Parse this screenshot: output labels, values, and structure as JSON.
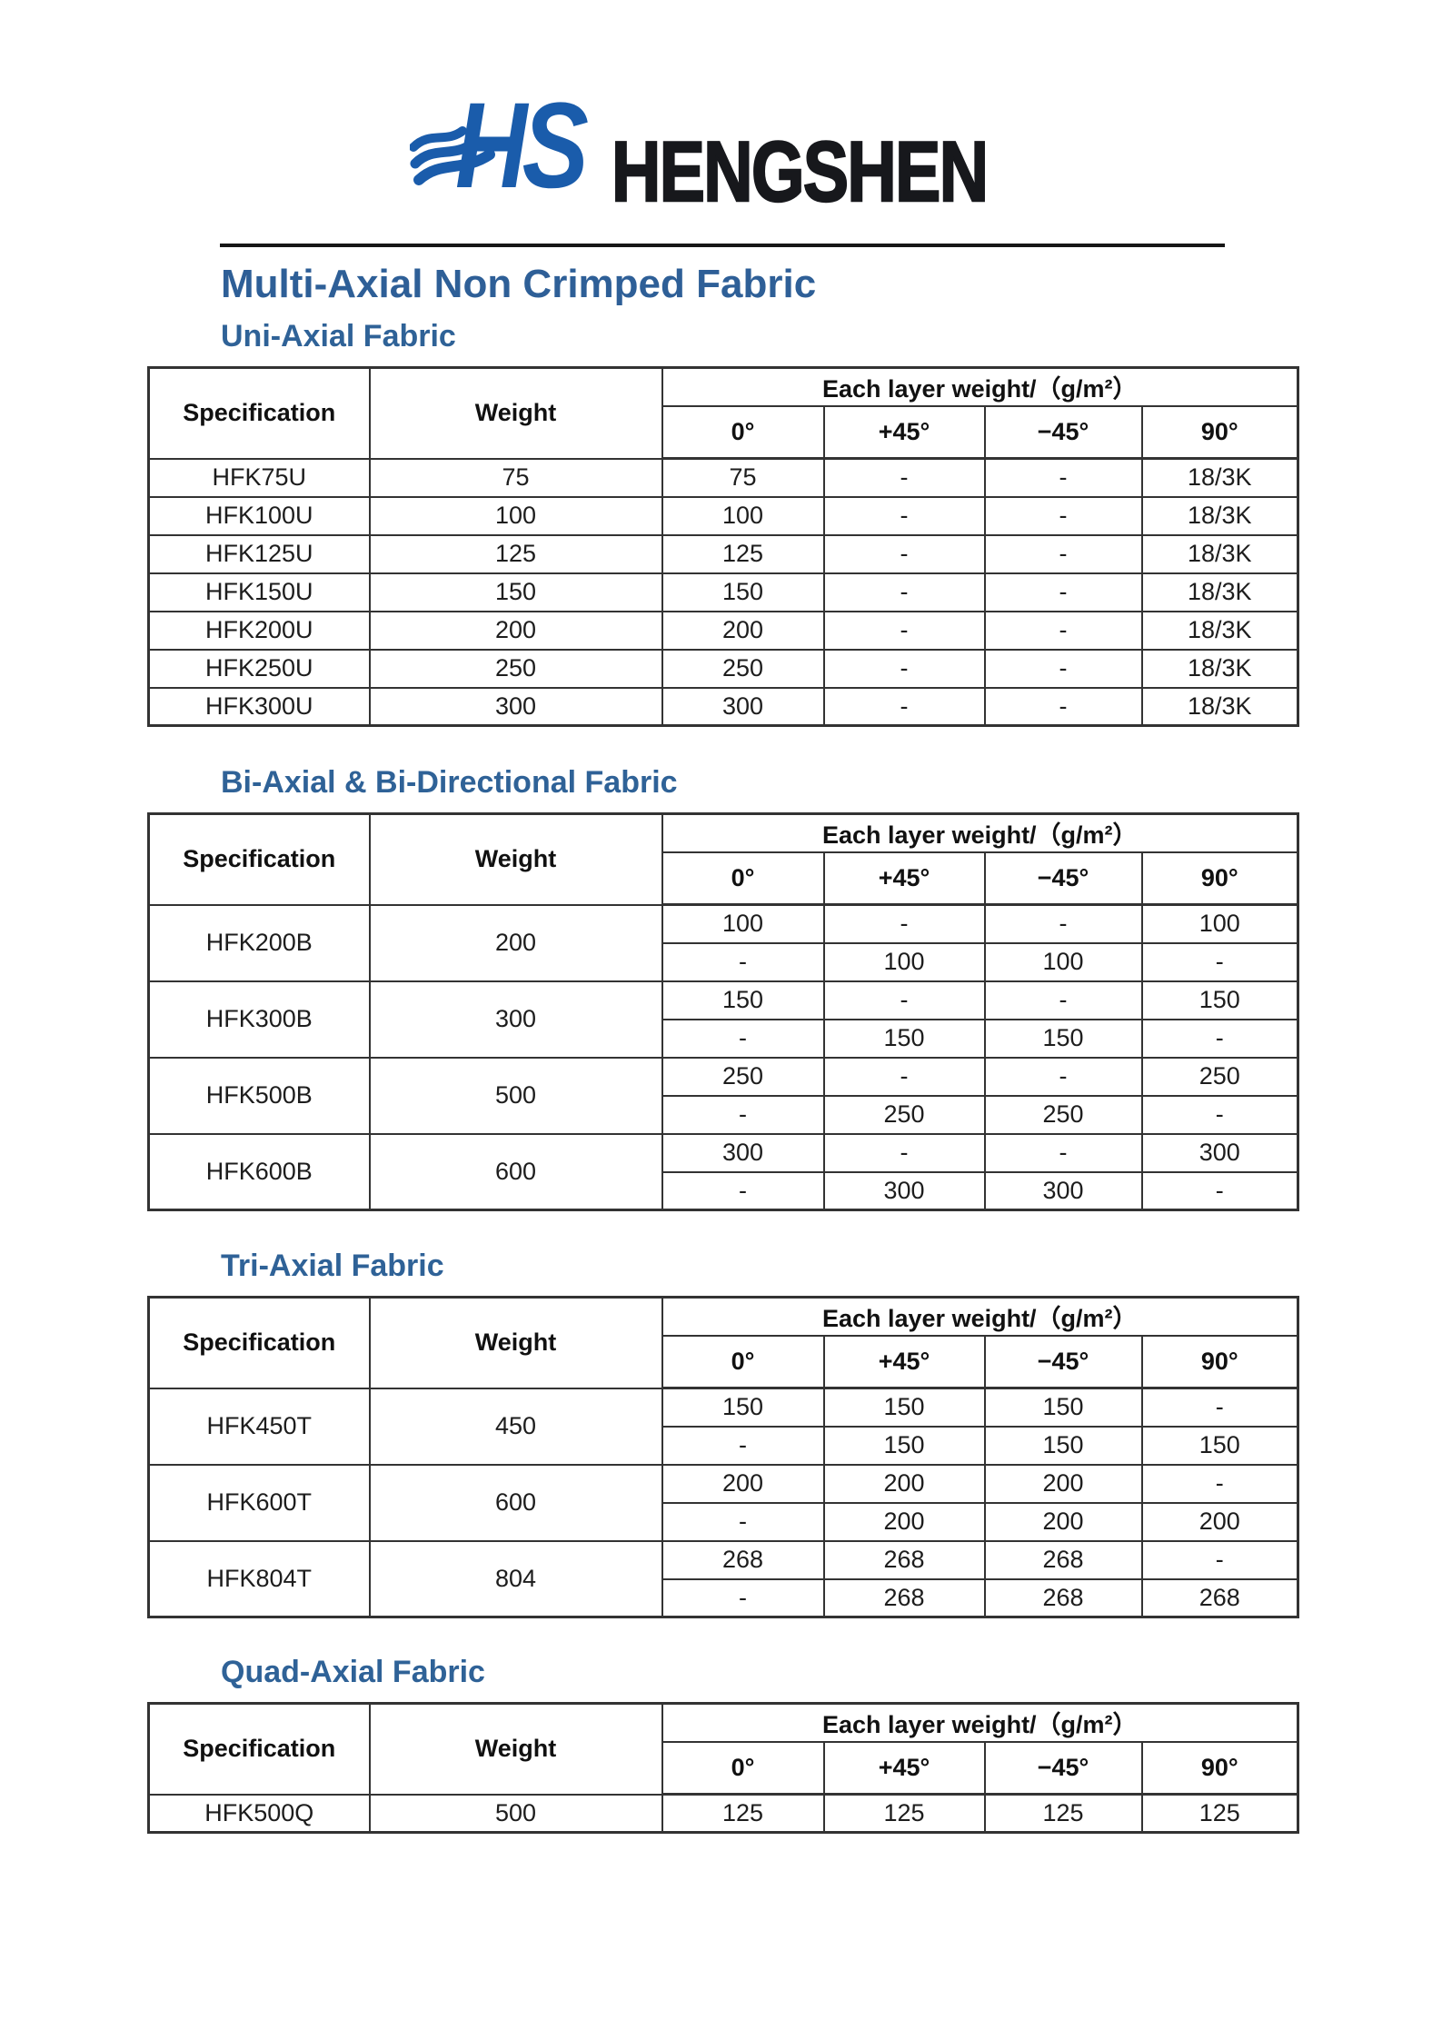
{
  "logo": {
    "monogram": "HS",
    "wordmark": "HENGSHEN"
  },
  "colors": {
    "logo_blue": "#1a5cab",
    "logo_dark": "#17181c",
    "heading_blue": "#2e5f97",
    "section_blue": "#2f6297",
    "table_border": "#333333"
  },
  "title": "Multi-Axial Non Crimped Fabric",
  "table_header": {
    "spec": "Specification",
    "weight": "Weight",
    "layer": "Each layer weight/（g/m²）",
    "angles": [
      "0°",
      "+45°",
      "−45°",
      "90°"
    ]
  },
  "sections": [
    {
      "title": "Uni-Axial Fabric",
      "rows": [
        {
          "spec": "HFK75U",
          "weight": "75",
          "sub": [
            [
              "75",
              "-",
              "-",
              "18/3K"
            ]
          ]
        },
        {
          "spec": "HFK100U",
          "weight": "100",
          "sub": [
            [
              "100",
              "-",
              "-",
              "18/3K"
            ]
          ]
        },
        {
          "spec": "HFK125U",
          "weight": "125",
          "sub": [
            [
              "125",
              "-",
              "-",
              "18/3K"
            ]
          ]
        },
        {
          "spec": "HFK150U",
          "weight": "150",
          "sub": [
            [
              "150",
              "-",
              "-",
              "18/3K"
            ]
          ]
        },
        {
          "spec": "HFK200U",
          "weight": "200",
          "sub": [
            [
              "200",
              "-",
              "-",
              "18/3K"
            ]
          ]
        },
        {
          "spec": "HFK250U",
          "weight": "250",
          "sub": [
            [
              "250",
              "-",
              "-",
              "18/3K"
            ]
          ]
        },
        {
          "spec": "HFK300U",
          "weight": "300",
          "sub": [
            [
              "300",
              "-",
              "-",
              "18/3K"
            ]
          ]
        }
      ]
    },
    {
      "title": "Bi-Axial & Bi-Directional Fabric",
      "rows": [
        {
          "spec": "HFK200B",
          "weight": "200",
          "sub": [
            [
              "100",
              "-",
              "-",
              "100"
            ],
            [
              "-",
              "100",
              "100",
              "-"
            ]
          ]
        },
        {
          "spec": "HFK300B",
          "weight": "300",
          "sub": [
            [
              "150",
              "-",
              "-",
              "150"
            ],
            [
              "-",
              "150",
              "150",
              "-"
            ]
          ]
        },
        {
          "spec": "HFK500B",
          "weight": "500",
          "sub": [
            [
              "250",
              "-",
              "-",
              "250"
            ],
            [
              "-",
              "250",
              "250",
              "-"
            ]
          ]
        },
        {
          "spec": "HFK600B",
          "weight": "600",
          "sub": [
            [
              "300",
              "-",
              "-",
              "300"
            ],
            [
              "-",
              "300",
              "300",
              "-"
            ]
          ]
        }
      ]
    },
    {
      "title": "Tri-Axial Fabric",
      "rows": [
        {
          "spec": "HFK450T",
          "weight": "450",
          "sub": [
            [
              "150",
              "150",
              "150",
              "-"
            ],
            [
              "-",
              "150",
              "150",
              "150"
            ]
          ]
        },
        {
          "spec": "HFK600T",
          "weight": "600",
          "sub": [
            [
              "200",
              "200",
              "200",
              "-"
            ],
            [
              "-",
              "200",
              "200",
              "200"
            ]
          ]
        },
        {
          "spec": "HFK804T",
          "weight": "804",
          "sub": [
            [
              "268",
              "268",
              "268",
              "-"
            ],
            [
              "-",
              "268",
              "268",
              "268"
            ]
          ]
        }
      ]
    },
    {
      "title": "Quad-Axial Fabric",
      "rows": [
        {
          "spec": "HFK500Q",
          "weight": "500",
          "sub": [
            [
              "125",
              "125",
              "125",
              "125"
            ]
          ]
        }
      ]
    }
  ]
}
